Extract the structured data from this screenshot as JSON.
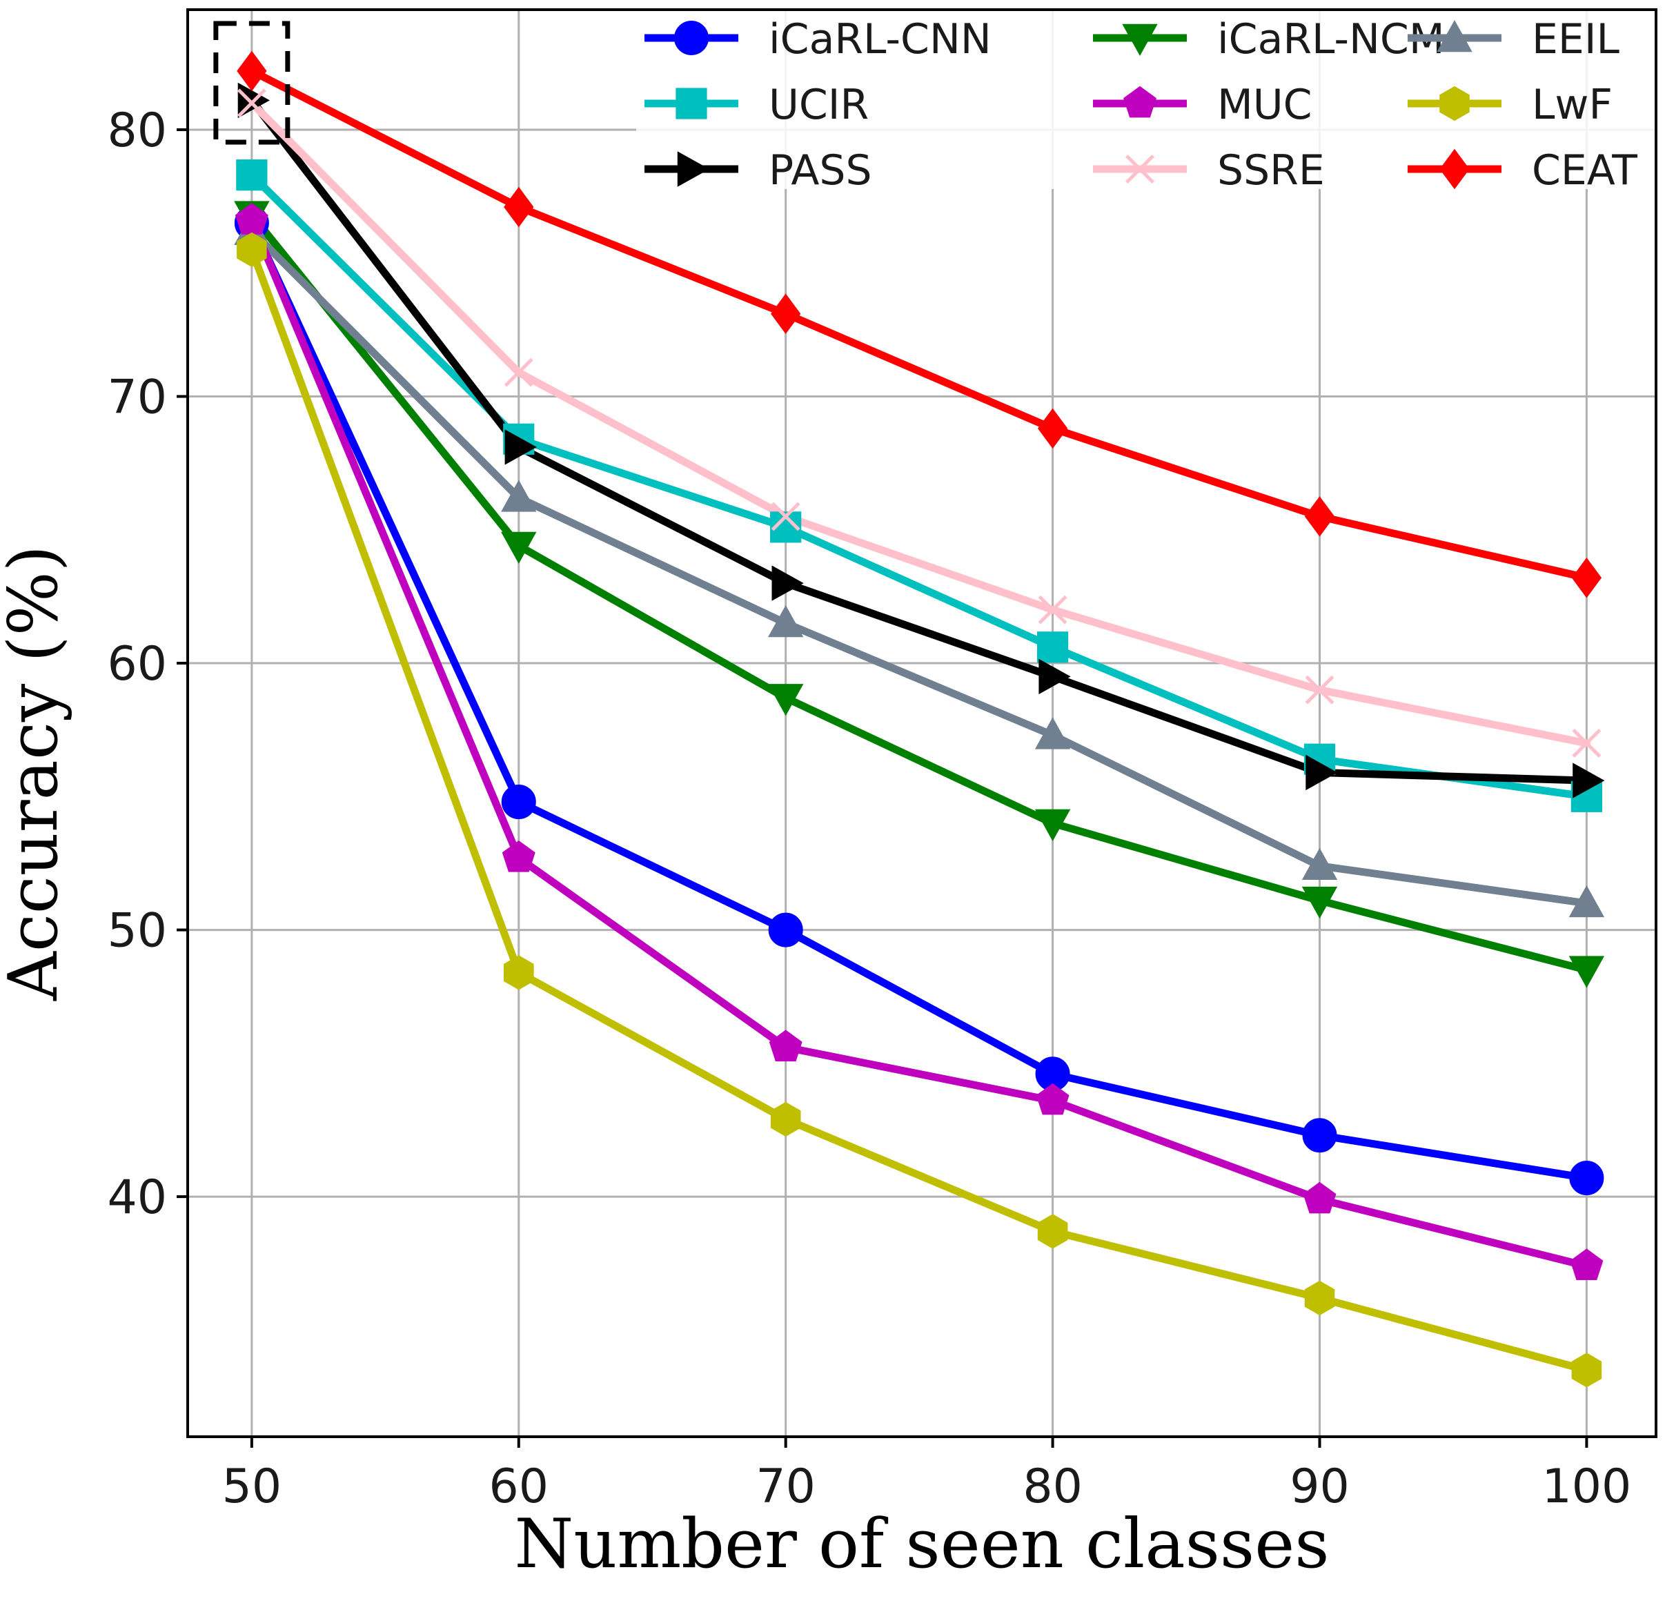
{
  "chart_data": {
    "type": "line",
    "title": "",
    "xlabel": "Number of seen classes",
    "ylabel": "Accuracy (%)",
    "x": [
      50,
      60,
      70,
      80,
      90,
      100
    ],
    "xticks": [
      50,
      60,
      70,
      80,
      90,
      100
    ],
    "yticks": [
      40,
      50,
      60,
      70,
      80
    ],
    "xlim": [
      47.6,
      102.6
    ],
    "ylim": [
      31,
      84.5
    ],
    "grid": true,
    "legend_position": "top-right",
    "legend_columns": 3,
    "series": [
      {
        "name": "iCaRL-CNN",
        "color": "#0000ff",
        "marker": "circle",
        "values": [
          76.5,
          54.8,
          50.0,
          44.6,
          42.3,
          40.7
        ]
      },
      {
        "name": "iCaRL-NCM",
        "color": "#008000",
        "marker": "triangle-down",
        "values": [
          76.8,
          64.4,
          58.7,
          54.0,
          51.1,
          48.5
        ]
      },
      {
        "name": "EEIL",
        "color": "#708090",
        "marker": "triangle-up",
        "values": [
          76.2,
          66.2,
          61.5,
          57.3,
          52.4,
          51.0
        ]
      },
      {
        "name": "UCIR",
        "color": "#00bfbf",
        "marker": "square",
        "values": [
          78.3,
          68.4,
          65.1,
          60.6,
          56.4,
          55.0
        ]
      },
      {
        "name": "MUC",
        "color": "#bf00bf",
        "marker": "pentagon",
        "values": [
          76.6,
          52.7,
          45.6,
          43.6,
          39.9,
          37.4
        ]
      },
      {
        "name": "LwF",
        "color": "#bfbf00",
        "marker": "hexagon",
        "values": [
          75.5,
          48.4,
          42.9,
          38.7,
          36.2,
          33.5
        ]
      },
      {
        "name": "PASS",
        "color": "#000000",
        "marker": "triangle-right",
        "values": [
          81.1,
          68.1,
          63.0,
          59.5,
          55.9,
          55.6
        ]
      },
      {
        "name": "SSRE",
        "color": "#ffc0cb",
        "marker": "x",
        "values": [
          81.0,
          70.9,
          65.5,
          62.0,
          59.0,
          57.0
        ]
      },
      {
        "name": "CEAT",
        "color": "#ff0000",
        "marker": "diamond",
        "values": [
          82.2,
          77.1,
          73.1,
          68.8,
          65.5,
          63.2
        ]
      }
    ],
    "annotation": "dashed box around the first data point"
  }
}
